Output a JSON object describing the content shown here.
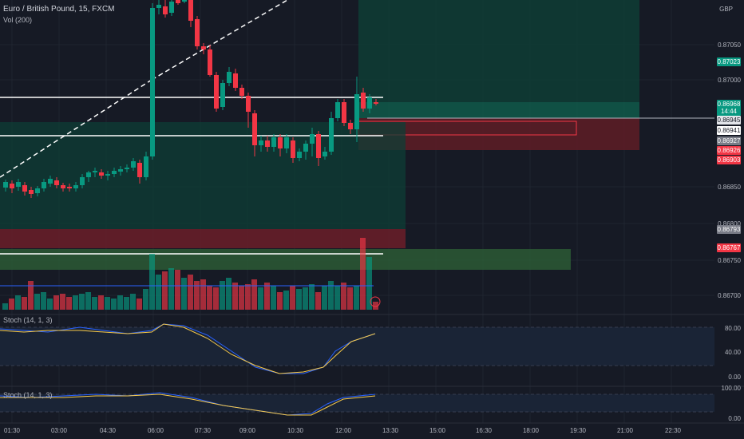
{
  "header": {
    "title": "Euro / British Pound, 15, FXCM",
    "volume_label": "Vol (200)"
  },
  "stoch_panels": [
    {
      "label": "Stoch (14, 1, 3)"
    },
    {
      "label": "Stoch (14, 1, 3)"
    }
  ],
  "price_axis": {
    "currency": "GBP",
    "ticks": [
      "0.87050",
      "0.87000",
      "0.86850",
      "0.86800",
      "0.86750",
      "0.86700"
    ]
  },
  "price_tags": [
    {
      "label": "0.87023",
      "color": "#089981"
    },
    {
      "label": "0.86968",
      "sub": "14:44",
      "color": "#089981"
    },
    {
      "label": "0.86945",
      "color": "#e3e5ea"
    },
    {
      "label": "0.86941",
      "color": "#ffffff"
    },
    {
      "label": "0.86927",
      "color": "#787b86"
    },
    {
      "label": "0.86926",
      "color": "#f23645"
    },
    {
      "label": "0.86903",
      "color": "#f23645"
    },
    {
      "label": "0.86793",
      "color": "#787b86"
    },
    {
      "label": "0.86767",
      "color": "#f23645"
    }
  ],
  "stoch_axis_1": [
    "80.00",
    "40.00",
    "0.00"
  ],
  "stoch_axis_2": [
    "100.00",
    "0.00"
  ],
  "time_axis": [
    "01:30",
    "03:00",
    "04:30",
    "06:00",
    "07:30",
    "09:00",
    "10:30",
    "12:00",
    "13:30",
    "15:00",
    "16:30",
    "18:00",
    "19:30",
    "21:00",
    "22:30"
  ],
  "colors": {
    "up": "#089981",
    "down": "#f23645",
    "bg": "#161a25"
  }
}
